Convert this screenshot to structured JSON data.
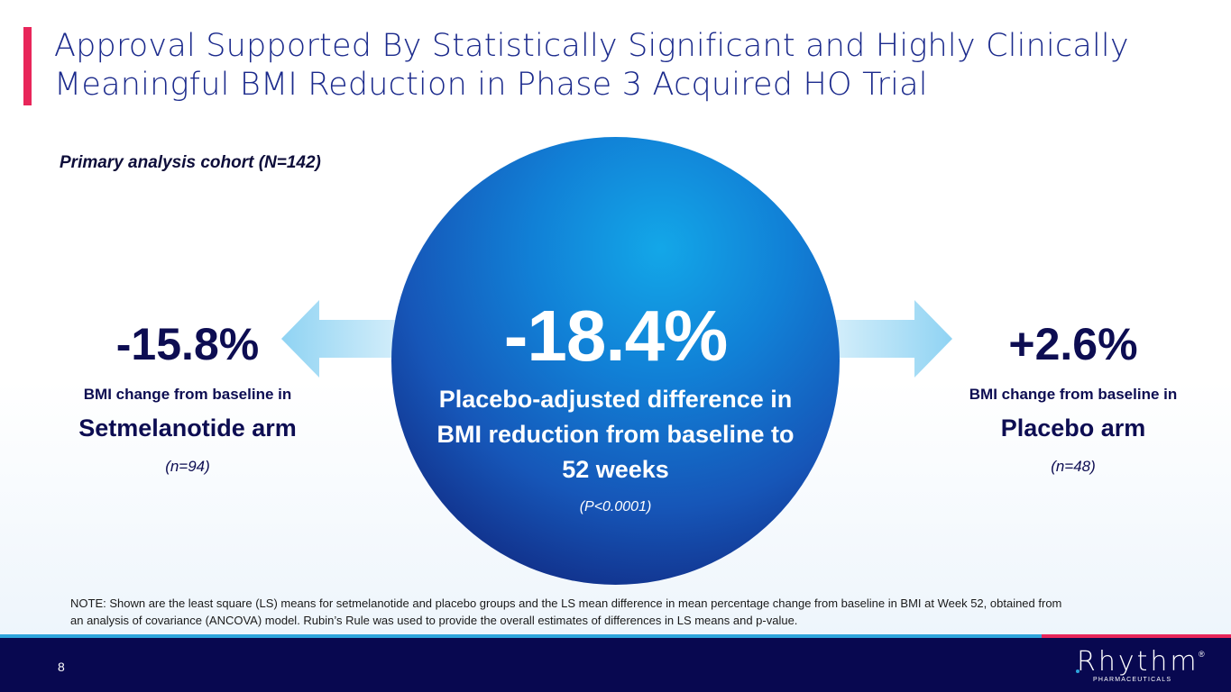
{
  "header": {
    "title": "Approval Supported By Statistically Significant and Highly Clinically Meaningful BMI Reduction in Phase 3 Acquired HO Trial"
  },
  "cohort_label": "Primary analysis cohort (N=142)",
  "center": {
    "value": "-18.4%",
    "description": "Placebo-adjusted difference in BMI reduction from baseline to 52 weeks",
    "p_value": "(P<0.0001)"
  },
  "left": {
    "value": "-15.8%",
    "label": "BMI change from baseline in",
    "arm": "Setmelanotide arm",
    "n": "(n=94)"
  },
  "right": {
    "value": "+2.6%",
    "label": "BMI change from baseline in",
    "arm": "Placebo arm",
    "n": "(n=48)"
  },
  "note": "NOTE: Shown are the least square (LS) means for setmelanotide and placebo groups and the LS mean difference in mean percentage change from baseline in BMI at Week 52, obtained from an analysis of covariance (ANCOVA) model. Rubin’s Rule was used to provide the overall estimates of differences in LS means and p-value.",
  "footer": {
    "page_number": "8",
    "logo_word": "Rhythm",
    "logo_reg": "®",
    "logo_sub": "PHARMACEUTICALS"
  },
  "colors": {
    "accent_pink": "#e8265a",
    "title_blue": "#1b2a8c",
    "navy": "#080850",
    "light_blue": "#2ea5dc"
  }
}
